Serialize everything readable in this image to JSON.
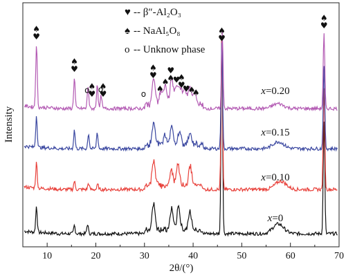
{
  "chart_data": {
    "type": "line",
    "xlabel": "2θ/(°)",
    "ylabel": "Intensity",
    "xlim": [
      5,
      70
    ],
    "xticks": [
      10,
      20,
      30,
      40,
      50,
      60,
      70
    ],
    "y_ticks_shown": false,
    "legend": {
      "placement": "top-left",
      "entries": [
        {
          "symbol": "♥",
          "symbol_name": "heart-icon",
          "text": "-- β″-Al₂O₃"
        },
        {
          "symbol": "♠",
          "symbol_name": "spade-icon",
          "text": "-- NaAl₅O₈"
        },
        {
          "symbol": "o",
          "symbol_name": "circle-icon",
          "text": "-- Unknow phase"
        }
      ]
    },
    "series": [
      {
        "name": "x=0",
        "color": "#111111",
        "peaks": [
          {
            "x": 7.8,
            "h": 38
          },
          {
            "x": 15.6,
            "h": 12
          },
          {
            "x": 18.3,
            "h": 14
          },
          {
            "x": 31.9,
            "h": 38
          },
          {
            "x": 35.6,
            "h": 30
          },
          {
            "x": 37.0,
            "h": 33
          },
          {
            "x": 39.3,
            "h": 26
          },
          {
            "x": 45.9,
            "h": 290
          },
          {
            "x": 57.5,
            "h": 14
          },
          {
            "x": 66.9,
            "h": 165
          }
        ]
      },
      {
        "name": "x=0.10",
        "color": "#e8403a",
        "peaks": [
          {
            "x": 7.8,
            "h": 37
          },
          {
            "x": 15.6,
            "h": 12
          },
          {
            "x": 18.5,
            "h": 9
          },
          {
            "x": 20.4,
            "h": 7
          },
          {
            "x": 31.9,
            "h": 36
          },
          {
            "x": 35.6,
            "h": 22
          },
          {
            "x": 36.9,
            "h": 30
          },
          {
            "x": 39.4,
            "h": 27
          },
          {
            "x": 45.9,
            "h": 225
          },
          {
            "x": 58.0,
            "h": 12
          },
          {
            "x": 66.9,
            "h": 150
          }
        ]
      },
      {
        "name": "x=0.15",
        "color": "#3a47a0",
        "peaks": [
          {
            "x": 7.8,
            "h": 46
          },
          {
            "x": 15.6,
            "h": 27
          },
          {
            "x": 18.5,
            "h": 22
          },
          {
            "x": 20.3,
            "h": 24
          },
          {
            "x": 31.9,
            "h": 30
          },
          {
            "x": 34.2,
            "h": 14
          },
          {
            "x": 35.6,
            "h": 26
          },
          {
            "x": 37.2,
            "h": 19
          },
          {
            "x": 39.3,
            "h": 15
          },
          {
            "x": 45.9,
            "h": 160
          },
          {
            "x": 57.5,
            "h": 10
          },
          {
            "x": 66.9,
            "h": 118
          }
        ]
      },
      {
        "name": "x=0.20",
        "color": "#b35ab3",
        "peaks": [
          {
            "x": 7.8,
            "h": 92
          },
          {
            "x": 15.6,
            "h": 45
          },
          {
            "x": 18.4,
            "h": 33
          },
          {
            "x": 20.3,
            "h": 36
          },
          {
            "x": 21.1,
            "h": 19
          },
          {
            "x": 31.9,
            "h": 38
          },
          {
            "x": 33.4,
            "h": 20
          },
          {
            "x": 34.3,
            "h": 26
          },
          {
            "x": 35.6,
            "h": 39
          },
          {
            "x": 36.6,
            "h": 28
          },
          {
            "x": 37.4,
            "h": 24
          },
          {
            "x": 38.3,
            "h": 22
          },
          {
            "x": 39.3,
            "h": 27
          },
          {
            "x": 40.3,
            "h": 17
          },
          {
            "x": 46.0,
            "h": 110
          },
          {
            "x": 57.5,
            "h": 7
          },
          {
            "x": 66.9,
            "h": 108
          }
        ]
      }
    ],
    "phase_markers": [
      {
        "x": 7.8,
        "symbols": [
          "spade-icon",
          "heart-icon"
        ]
      },
      {
        "x": 15.6,
        "symbols": [
          "spade-icon",
          "heart-icon"
        ]
      },
      {
        "x": 18.2,
        "symbols": [
          "circle-icon"
        ]
      },
      {
        "x": 19.2,
        "symbols": [
          "spade-icon",
          "heart-icon"
        ]
      },
      {
        "x": 21.0,
        "symbols": [
          "circle-icon"
        ]
      },
      {
        "x": 21.5,
        "symbols": [
          "spade-icon",
          "heart-icon"
        ]
      },
      {
        "x": 29.8,
        "symbols": [
          "circle-icon"
        ]
      },
      {
        "x": 31.8,
        "symbols": [
          "spade-icon",
          "heart-icon"
        ]
      },
      {
        "x": 33.2,
        "symbols": [
          "spade-icon"
        ]
      },
      {
        "x": 34.3,
        "symbols": [
          "spade-icon"
        ]
      },
      {
        "x": 35.4,
        "symbols": [
          "heart-icon",
          "spade-icon"
        ]
      },
      {
        "x": 36.6,
        "symbols": [
          "heart-icon"
        ]
      },
      {
        "x": 37.6,
        "symbols": [
          "spade-icon",
          "heart-icon"
        ]
      },
      {
        "x": 38.6,
        "symbols": [
          "heart-icon"
        ]
      },
      {
        "x": 39.7,
        "symbols": [
          "spade-icon"
        ]
      },
      {
        "x": 40.6,
        "symbols": [
          "spade-icon"
        ]
      },
      {
        "x": 45.9,
        "symbols": [
          "spade-icon",
          "heart-icon"
        ]
      },
      {
        "x": 66.9,
        "symbols": [
          "spade-icon",
          "heart-icon"
        ]
      }
    ]
  }
}
